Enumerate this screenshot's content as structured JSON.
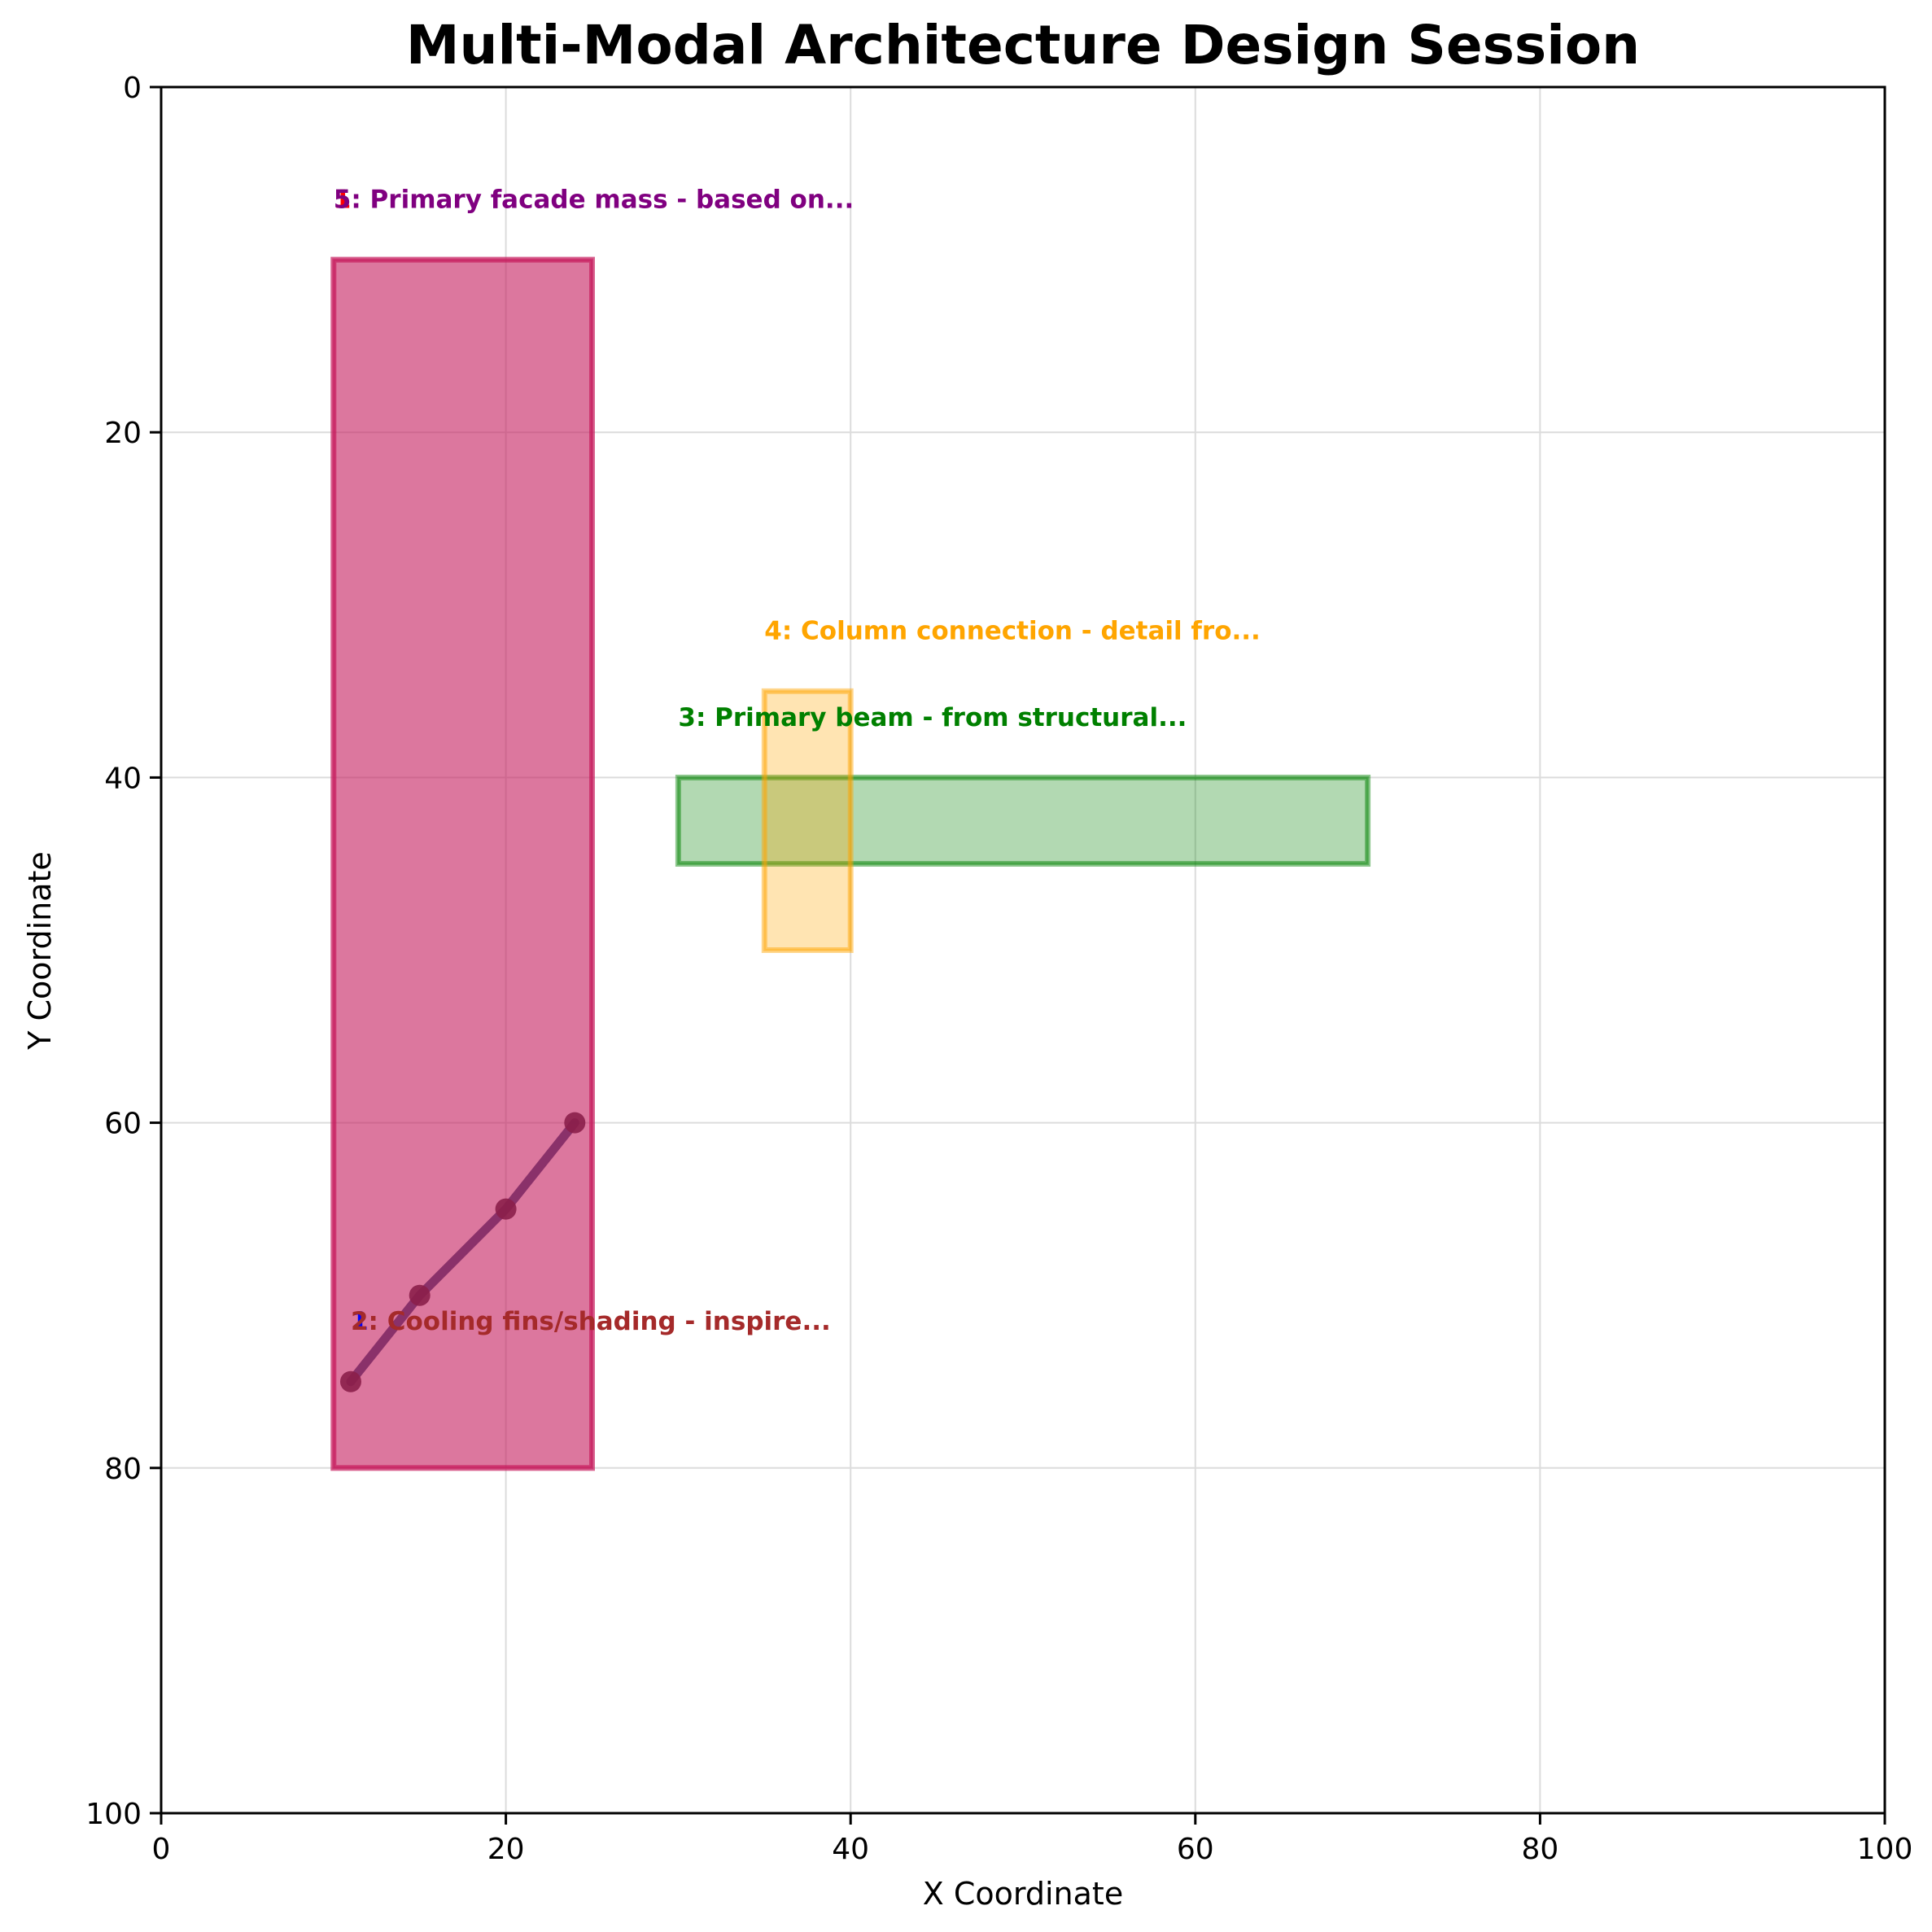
{
  "chart_data": {
    "type": "annotated-shapes",
    "title": "Multi-Modal Architecture Design Session",
    "xlabel": "X Coordinate",
    "ylabel": "Y Coordinate",
    "xlim": [
      0,
      100
    ],
    "ylim": [
      100,
      0
    ],
    "y_inverted": true,
    "grid": true,
    "xticks": [
      0,
      20,
      40,
      60,
      80,
      100
    ],
    "yticks": [
      0,
      20,
      40,
      60,
      80,
      100
    ],
    "rectangles": [
      {
        "id": "5",
        "x0": 10,
        "y0": 10,
        "x1": 25,
        "y1": 80,
        "fill": "#c71e5f",
        "edge": "#c71e5f",
        "fill_opacity": 0.58
      },
      {
        "id": "1",
        "x0": 10,
        "y0": 10,
        "x1": 25,
        "y1": 80,
        "fill": "#c71e5f",
        "edge": "#c71e5f",
        "fill_opacity": 0.05
      },
      {
        "id": "3",
        "x0": 30,
        "y0": 40,
        "x1": 70,
        "y1": 45,
        "fill": "#008000",
        "edge": "#008000",
        "fill_opacity": 0.3
      },
      {
        "id": "4",
        "x0": 35,
        "y0": 35,
        "x1": 40,
        "y1": 50,
        "fill": "#ffa500",
        "edge": "#ffa500",
        "fill_opacity": 0.3
      }
    ],
    "line_series": [
      {
        "id": "2",
        "x": [
          11,
          15,
          20,
          24
        ],
        "y": [
          75,
          70,
          65,
          60
        ],
        "color": "#7b2560"
      }
    ],
    "annotations": [
      {
        "text": "1",
        "x": 10,
        "y": 7,
        "color": "#ff0000"
      },
      {
        "text": "5: Primary facade mass - based on...",
        "x": 10,
        "y": 7,
        "color": "#800080"
      },
      {
        "text": "4: Column connection - detail fro...",
        "x": 35,
        "y": 32,
        "color": "#ffa500"
      },
      {
        "text": "3: Primary beam - from structural...",
        "x": 30,
        "y": 37,
        "color": "#008000"
      },
      {
        "text": "1",
        "x": 11,
        "y": 72,
        "color": "#0000ff"
      },
      {
        "text": "2: Cooling fins/shading - inspire...",
        "x": 11,
        "y": 72,
        "color": "#a52a2a"
      }
    ]
  }
}
